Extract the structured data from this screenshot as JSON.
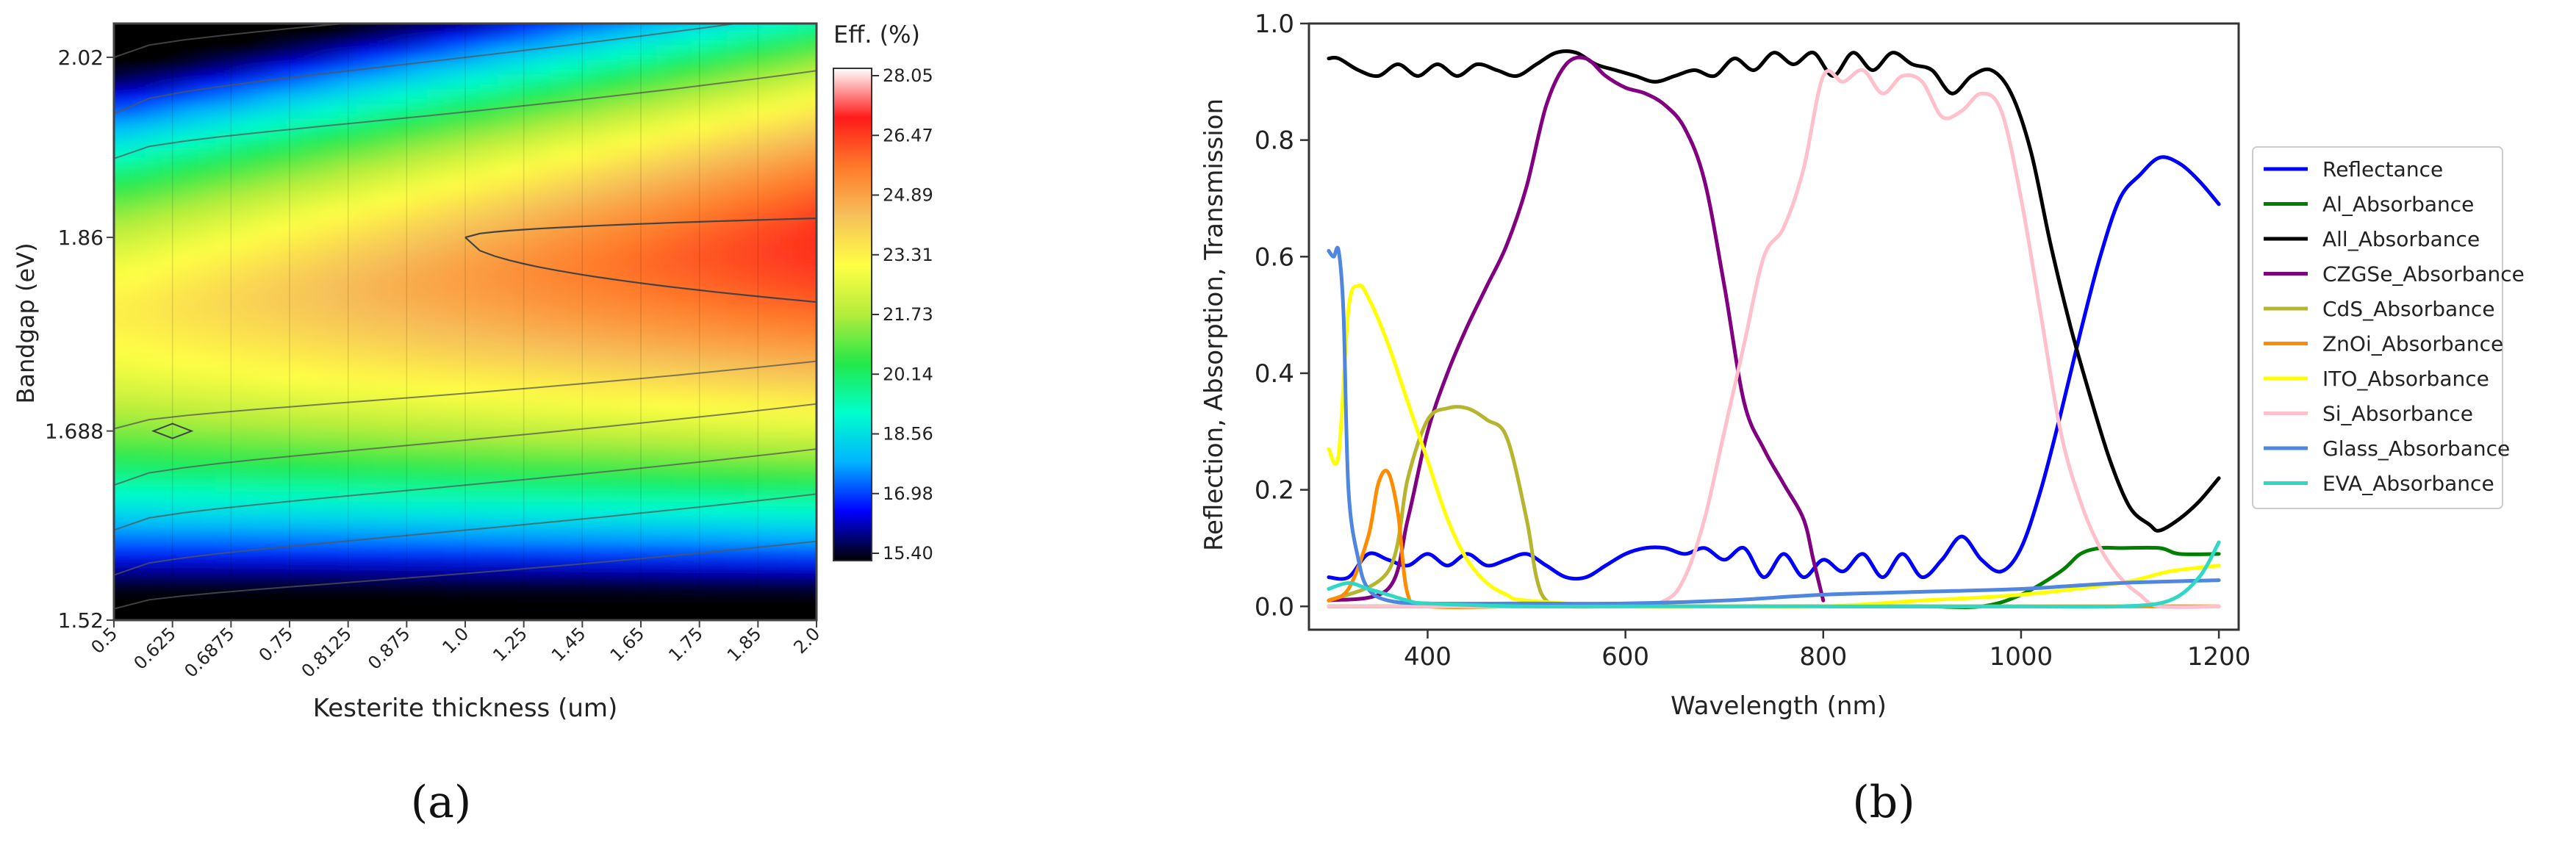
{
  "chart_data": [
    {
      "type": "heatmap",
      "panel_label": "(a)",
      "xlabel": "Kesterite thickness (um)",
      "ylabel": "Bandgap (eV)",
      "x_ticks": [
        "0.5",
        "0.625",
        "0.6875",
        "0.75",
        "0.8125",
        "0.875",
        "1.0",
        "1.25",
        "1.45",
        "1.65",
        "1.75",
        "1.85",
        "2.0"
      ],
      "x_values": [
        0.5,
        0.625,
        0.6875,
        0.75,
        0.8125,
        0.875,
        1.0,
        1.25,
        1.45,
        1.65,
        1.75,
        1.85,
        2.0
      ],
      "y_ticks": [
        "1.52",
        "1.688",
        "1.86",
        "2.02"
      ],
      "y_values": [
        1.52,
        1.688,
        1.86,
        2.02
      ],
      "ylim": [
        1.52,
        2.05
      ],
      "colorbar": {
        "title": "Eff. (%)",
        "ticks": [
          "28.05",
          "26.47",
          "24.89",
          "23.31",
          "21.73",
          "20.14",
          "18.56",
          "16.98",
          "15.40"
        ],
        "min": 15.4,
        "max": 28.05,
        "colors": [
          "#000000",
          "#0000ff",
          "#00b4ff",
          "#00ffcc",
          "#22e84a",
          "#b4ec3c",
          "#ffff44",
          "#f6c05a",
          "#ff7a2a",
          "#ff1a1a",
          "#ffffff"
        ]
      }
    },
    {
      "type": "line",
      "panel_label": "(b)",
      "xlabel": "Wavelength (nm)",
      "ylabel": "Reflection, Absorption, Transmission",
      "xlim": [
        280,
        1220
      ],
      "ylim": [
        -0.04,
        1.0
      ],
      "x_ticks": [
        400,
        600,
        800,
        1000,
        1200
      ],
      "y_ticks": [
        0.0,
        0.2,
        0.4,
        0.6,
        0.8,
        1.0
      ],
      "x_tick_labels": [
        "400",
        "600",
        "800",
        "1000",
        "1200"
      ],
      "y_tick_labels": [
        "0.0",
        "0.2",
        "0.4",
        "0.6",
        "0.8",
        "1.0"
      ],
      "legend_position": "right",
      "series": [
        {
          "name": "Reflectance",
          "color": "#0000ff",
          "x": [
            300,
            320,
            340,
            360,
            380,
            400,
            420,
            440,
            460,
            480,
            500,
            520,
            540,
            560,
            580,
            600,
            620,
            640,
            660,
            680,
            700,
            720,
            740,
            760,
            780,
            800,
            820,
            840,
            860,
            880,
            900,
            920,
            940,
            960,
            980,
            1000,
            1020,
            1040,
            1060,
            1080,
            1100,
            1120,
            1140,
            1160,
            1180,
            1200
          ],
          "y": [
            0.05,
            0.05,
            0.09,
            0.08,
            0.07,
            0.09,
            0.07,
            0.09,
            0.07,
            0.08,
            0.09,
            0.07,
            0.05,
            0.05,
            0.07,
            0.09,
            0.1,
            0.1,
            0.09,
            0.1,
            0.08,
            0.1,
            0.05,
            0.09,
            0.05,
            0.08,
            0.06,
            0.09,
            0.05,
            0.09,
            0.05,
            0.08,
            0.12,
            0.08,
            0.06,
            0.1,
            0.2,
            0.33,
            0.47,
            0.6,
            0.7,
            0.74,
            0.77,
            0.76,
            0.73,
            0.69
          ]
        },
        {
          "name": "Al_Absorbance",
          "color": "#008000",
          "x": [
            300,
            400,
            500,
            600,
            700,
            800,
            900,
            960,
            1000,
            1040,
            1060,
            1080,
            1100,
            1140,
            1160,
            1200
          ],
          "y": [
            0.0,
            0.0,
            0.0,
            0.0,
            0.0,
            0.0,
            0.0,
            0.0,
            0.02,
            0.06,
            0.09,
            0.1,
            0.1,
            0.1,
            0.09,
            0.09
          ]
        },
        {
          "name": "All_Absorbance",
          "color": "#000000",
          "x": [
            300,
            310,
            330,
            350,
            370,
            390,
            410,
            430,
            450,
            470,
            490,
            510,
            530,
            550,
            570,
            590,
            610,
            630,
            650,
            670,
            690,
            710,
            730,
            750,
            770,
            790,
            810,
            830,
            850,
            870,
            890,
            910,
            930,
            950,
            970,
            990,
            1010,
            1030,
            1050,
            1070,
            1090,
            1110,
            1130,
            1140,
            1160,
            1180,
            1200
          ],
          "y": [
            0.94,
            0.94,
            0.92,
            0.91,
            0.93,
            0.91,
            0.93,
            0.91,
            0.93,
            0.92,
            0.91,
            0.93,
            0.95,
            0.95,
            0.93,
            0.92,
            0.91,
            0.9,
            0.91,
            0.92,
            0.91,
            0.94,
            0.92,
            0.95,
            0.93,
            0.95,
            0.91,
            0.95,
            0.92,
            0.95,
            0.93,
            0.92,
            0.88,
            0.91,
            0.92,
            0.88,
            0.78,
            0.62,
            0.48,
            0.36,
            0.25,
            0.17,
            0.14,
            0.13,
            0.15,
            0.18,
            0.22
          ]
        },
        {
          "name": "CZGSe_Absorbance",
          "color": "#800080",
          "x": [
            300,
            360,
            380,
            400,
            420,
            440,
            460,
            480,
            500,
            520,
            540,
            560,
            580,
            600,
            620,
            640,
            660,
            680,
            700,
            720,
            740,
            760,
            780,
            790,
            800
          ],
          "y": [
            0.01,
            0.03,
            0.15,
            0.3,
            0.4,
            0.48,
            0.55,
            0.62,
            0.72,
            0.86,
            0.93,
            0.94,
            0.91,
            0.89,
            0.88,
            0.86,
            0.82,
            0.73,
            0.55,
            0.35,
            0.27,
            0.21,
            0.15,
            0.08,
            0.01
          ]
        },
        {
          "name": "CdS_Absorbance",
          "color": "#b5b52e",
          "x": [
            300,
            360,
            380,
            400,
            420,
            440,
            460,
            480,
            500,
            510,
            520,
            540,
            600,
            700,
            800,
            900,
            1000,
            1100,
            1200
          ],
          "y": [
            0.01,
            0.06,
            0.22,
            0.32,
            0.34,
            0.34,
            0.32,
            0.29,
            0.15,
            0.05,
            0.01,
            0.0,
            0.0,
            0.0,
            0.0,
            0.0,
            0.0,
            0.0,
            0.0
          ]
        },
        {
          "name": "ZnOi_Absorbance",
          "color": "#ff8c00",
          "x": [
            300,
            320,
            340,
            350,
            360,
            370,
            380,
            400,
            500,
            600,
            700,
            800,
            900,
            1000,
            1100,
            1200
          ],
          "y": [
            0.01,
            0.03,
            0.12,
            0.21,
            0.23,
            0.16,
            0.02,
            0.0,
            0.0,
            0.0,
            0.0,
            0.0,
            0.0,
            0.0,
            0.0,
            0.0
          ]
        },
        {
          "name": "ITO_Absorbance",
          "color": "#ffff00",
          "x": [
            300,
            310,
            320,
            330,
            340,
            360,
            380,
            400,
            420,
            440,
            460,
            480,
            500,
            600,
            700,
            800,
            900,
            1000,
            1100,
            1150,
            1200
          ],
          "y": [
            0.27,
            0.26,
            0.51,
            0.55,
            0.53,
            0.45,
            0.35,
            0.25,
            0.15,
            0.08,
            0.04,
            0.02,
            0.01,
            0.0,
            0.0,
            0.0,
            0.01,
            0.02,
            0.04,
            0.06,
            0.07
          ]
        },
        {
          "name": "Si_Absorbance",
          "color": "#ffc0cb",
          "x": [
            300,
            400,
            500,
            600,
            640,
            660,
            680,
            700,
            720,
            740,
            760,
            780,
            800,
            820,
            840,
            860,
            880,
            900,
            920,
            940,
            960,
            980,
            1000,
            1020,
            1040,
            1060,
            1080,
            1100,
            1120,
            1140,
            1200
          ],
          "y": [
            0.0,
            0.0,
            0.0,
            0.0,
            0.01,
            0.05,
            0.15,
            0.3,
            0.45,
            0.6,
            0.65,
            0.75,
            0.91,
            0.9,
            0.92,
            0.88,
            0.91,
            0.9,
            0.84,
            0.85,
            0.88,
            0.85,
            0.7,
            0.5,
            0.3,
            0.18,
            0.1,
            0.05,
            0.02,
            0.0,
            0.0
          ]
        },
        {
          "name": "Glass_Absorbance",
          "color": "#4e86e0",
          "x": [
            300,
            305,
            310,
            315,
            320,
            330,
            340,
            360,
            400,
            500,
            600,
            700,
            800,
            900,
            1000,
            1100,
            1200
          ],
          "y": [
            0.61,
            0.6,
            0.61,
            0.5,
            0.2,
            0.08,
            0.03,
            0.01,
            0.005,
            0.005,
            0.005,
            0.01,
            0.02,
            0.025,
            0.03,
            0.04,
            0.045
          ]
        },
        {
          "name": "EVA_Absorbance",
          "color": "#2ed8c4",
          "x": [
            300,
            320,
            340,
            360,
            380,
            400,
            500,
            600,
            700,
            800,
            900,
            1000,
            1100,
            1150,
            1180,
            1200
          ],
          "y": [
            0.03,
            0.04,
            0.03,
            0.02,
            0.01,
            0.005,
            0.0,
            0.0,
            0.0,
            0.0,
            0.0,
            0.0,
            0.0,
            0.01,
            0.05,
            0.11
          ]
        }
      ]
    }
  ]
}
